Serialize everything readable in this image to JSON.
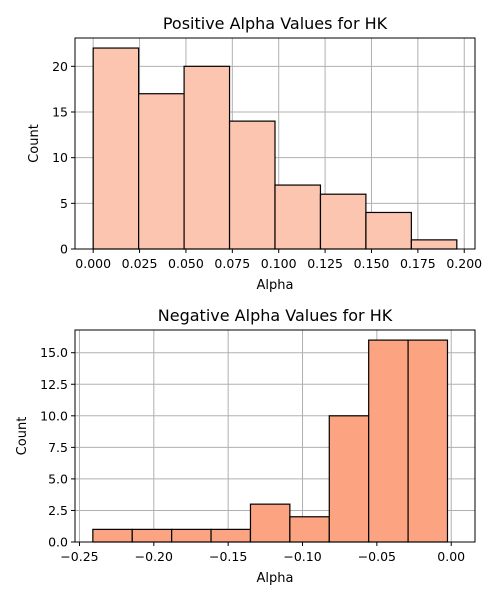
{
  "chart_data": [
    {
      "type": "bar",
      "title": "Positive Alpha Values for HK",
      "xlabel": "Alpha",
      "ylabel": "Count",
      "color": "#fcc5b0",
      "bin_edges": [
        0.0,
        0.0245,
        0.049,
        0.0735,
        0.098,
        0.1225,
        0.147,
        0.1715,
        0.196
      ],
      "values": [
        22,
        17,
        20,
        14,
        7,
        6,
        4,
        1
      ],
      "xlim": [
        -0.0098,
        0.2058
      ],
      "ylim": [
        0,
        23.1
      ],
      "xticks": [
        0.0,
        0.025,
        0.05,
        0.075,
        0.1,
        0.125,
        0.15,
        0.175,
        0.2
      ],
      "xtick_labels": [
        "0.000",
        "0.025",
        "0.050",
        "0.075",
        "0.100",
        "0.125",
        "0.150",
        "0.175",
        "0.200"
      ],
      "yticks": [
        0,
        5,
        10,
        15,
        20
      ],
      "ytick_labels": [
        "0",
        "5",
        "10",
        "15",
        "20"
      ],
      "grid": true
    },
    {
      "type": "bar",
      "title": "Negative Alpha Values for HK",
      "xlabel": "Alpha",
      "ylabel": "Count",
      "color": "#fca381",
      "bin_edges": [
        -0.241,
        -0.2145,
        -0.188,
        -0.1615,
        -0.135,
        -0.1085,
        -0.082,
        -0.0555,
        -0.029,
        -0.0025
      ],
      "values": [
        1,
        1,
        1,
        1,
        3,
        2,
        10,
        16,
        16
      ],
      "xlim": [
        -0.253,
        0.016
      ],
      "ylim": [
        0,
        16.8
      ],
      "xticks": [
        -0.25,
        -0.2,
        -0.15,
        -0.1,
        -0.05,
        0.0
      ],
      "xtick_labels": [
        "−0.25",
        "−0.20",
        "−0.15",
        "−0.10",
        "−0.05",
        "0.00"
      ],
      "yticks": [
        0,
        2.5,
        5,
        7.5,
        10,
        12.5,
        15
      ],
      "ytick_labels": [
        "0.0",
        "2.5",
        "5.0",
        "7.5",
        "10.0",
        "12.5",
        "15.0"
      ],
      "grid": true
    }
  ]
}
